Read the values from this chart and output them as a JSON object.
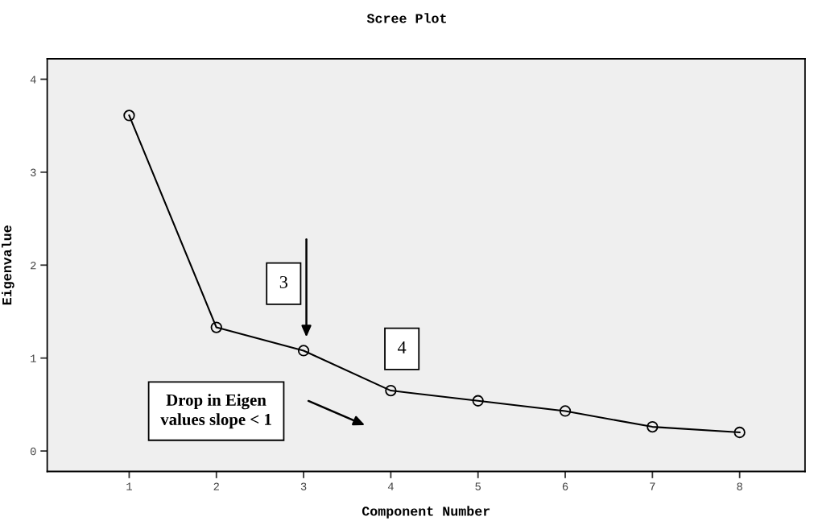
{
  "chart_data": {
    "type": "line",
    "title": "Scree Plot",
    "xlabel": "Component Number",
    "ylabel": "Eigenvalue",
    "x": [
      1,
      2,
      3,
      4,
      5,
      6,
      7,
      8
    ],
    "series": [
      {
        "color": "#000000",
        "values": [
          3.61,
          1.33,
          1.08,
          0.65,
          0.54,
          0.43,
          0.26,
          0.2
        ]
      }
    ],
    "xlim": [
      0.06,
      8.75
    ],
    "xticks": [
      1,
      2,
      3,
      4,
      5,
      6,
      7,
      8
    ],
    "ylim": [
      -0.22,
      4.22
    ],
    "yticks": [
      0,
      1,
      2,
      3,
      4
    ],
    "marker": "circle",
    "line_style": "solid",
    "grid": false,
    "annotations": [
      "3",
      "4",
      "Drop in Eigen\nvalues slope < 1"
    ]
  }
}
